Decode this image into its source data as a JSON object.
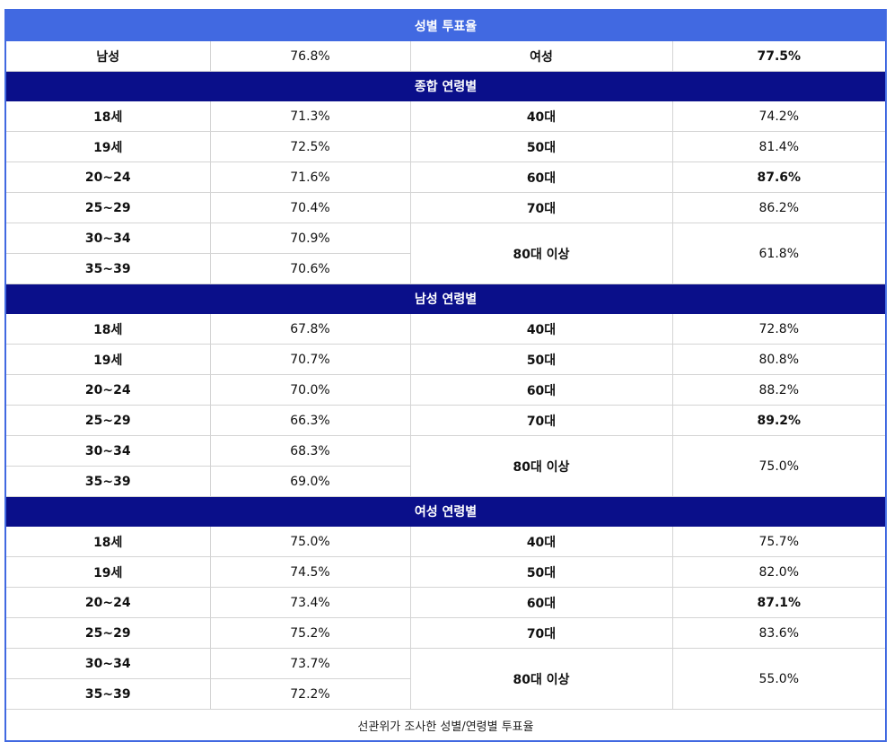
{
  "title": "성별 투표율",
  "gender": {
    "male_label": "남성",
    "male_value": "76.8%",
    "female_label": "여성",
    "female_value": "77.5%"
  },
  "sections": [
    {
      "heading": "종합 연령별",
      "rows": [
        {
          "a": "18세",
          "av": "71.3%",
          "b": "40대",
          "bv": "74.2%"
        },
        {
          "a": "19세",
          "av": "72.5%",
          "b": "50대",
          "bv": "81.4%"
        },
        {
          "a": "20~24",
          "av": "71.6%",
          "b": "60대",
          "bv": "87.6%"
        },
        {
          "a": "25~29",
          "av": "70.4%",
          "b": "70대",
          "bv": "86.2%"
        },
        {
          "a": "30~34",
          "av": "70.9%",
          "b": "80대 이상",
          "bv": "61.8%"
        },
        {
          "a": "35~39",
          "av": "70.6%"
        }
      ]
    },
    {
      "heading": "남성 연령별",
      "rows": [
        {
          "a": "18세",
          "av": "67.8%",
          "b": "40대",
          "bv": "72.8%"
        },
        {
          "a": "19세",
          "av": "70.7%",
          "b": "50대",
          "bv": "80.8%"
        },
        {
          "a": "20~24",
          "av": "70.0%",
          "b": "60대",
          "bv": "88.2%"
        },
        {
          "a": "25~29",
          "av": "66.3%",
          "b": "70대",
          "bv": "89.2%"
        },
        {
          "a": "30~34",
          "av": "68.3%",
          "b": "80대 이상",
          "bv": "75.0%"
        },
        {
          "a": "35~39",
          "av": "69.0%"
        }
      ]
    },
    {
      "heading": "여성 연령별",
      "rows": [
        {
          "a": "18세",
          "av": "75.0%",
          "b": "40대",
          "bv": "75.7%"
        },
        {
          "a": "19세",
          "av": "74.5%",
          "b": "50대",
          "bv": "82.0%"
        },
        {
          "a": "20~24",
          "av": "73.4%",
          "b": "60대",
          "bv": "87.1%"
        },
        {
          "a": "25~29",
          "av": "75.2%",
          "b": "70대",
          "bv": "83.6%"
        },
        {
          "a": "30~34",
          "av": "73.7%",
          "b": "80대 이상",
          "bv": "55.0%"
        },
        {
          "a": "35~39",
          "av": "72.2%"
        }
      ]
    }
  ],
  "caption": "선관위가 조사한 성별/연령별 투표율"
}
